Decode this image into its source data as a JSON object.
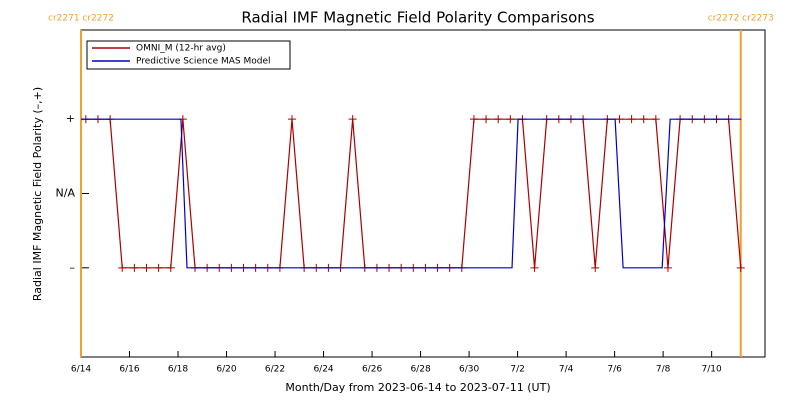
{
  "chart_data": {
    "type": "line",
    "title": "Radial IMF Magnetic Field Polarity Comparisons",
    "x_label": "Month/Day from 2023-06-14 to 2023-07-11 (UT)",
    "y_label": "Radial IMF Magnetic Field Polarity (–,+)",
    "xlim": [
      0,
      28.2
    ],
    "ylim": [
      -2.2,
      2.2
    ],
    "xticks": [
      {
        "value": 0,
        "label": "6/14"
      },
      {
        "value": 2,
        "label": "6/16"
      },
      {
        "value": 4,
        "label": "6/18"
      },
      {
        "value": 6,
        "label": "6/20"
      },
      {
        "value": 8,
        "label": "6/22"
      },
      {
        "value": 10,
        "label": "6/24"
      },
      {
        "value": 12,
        "label": "6/26"
      },
      {
        "value": 14,
        "label": "6/28"
      },
      {
        "value": 16,
        "label": "6/30"
      },
      {
        "value": 18,
        "label": "7/2"
      },
      {
        "value": 20,
        "label": "7/4"
      },
      {
        "value": 22,
        "label": "7/6"
      },
      {
        "value": 24,
        "label": "7/8"
      },
      {
        "value": 26,
        "label": "7/10"
      }
    ],
    "yticks": [
      {
        "value": 1,
        "label": "+"
      },
      {
        "value": 0,
        "label": "N/A"
      },
      {
        "value": -1,
        "label": "–"
      }
    ],
    "carrington_boundaries": [
      {
        "x": 0,
        "label": "cr2271 cr2272"
      },
      {
        "x": 27.2,
        "label": "cr2272 cr2273"
      }
    ],
    "boundary_color": "#f0a030",
    "series": [
      {
        "name": "OMNI_M (12-hr avg)",
        "color": "#aa0000",
        "markers": true,
        "x": [
          0.2,
          0.7,
          1.2,
          1.7,
          2.2,
          2.7,
          3.2,
          3.7,
          4.2,
          4.7,
          5.2,
          5.7,
          6.2,
          6.7,
          7.2,
          7.7,
          8.2,
          8.7,
          9.2,
          9.7,
          10.2,
          10.7,
          11.2,
          11.7,
          12.2,
          12.7,
          13.2,
          13.7,
          14.2,
          14.7,
          15.2,
          15.7,
          16.2,
          16.7,
          17.2,
          17.7,
          18.2,
          18.7,
          19.2,
          19.7,
          20.2,
          20.7,
          21.2,
          21.7,
          22.2,
          22.7,
          23.2,
          23.7,
          24.2,
          24.7,
          25.2,
          25.7,
          26.2,
          26.7,
          27.2
        ],
        "values": [
          1,
          1,
          1,
          -1,
          -1,
          -1,
          -1,
          -1,
          1,
          -1,
          -1,
          -1,
          -1,
          -1,
          -1,
          -1,
          -1,
          1,
          -1,
          -1,
          -1,
          -1,
          1,
          -1,
          -1,
          -1,
          -1,
          -1,
          -1,
          -1,
          -1,
          -1,
          1,
          1,
          1,
          1,
          1,
          -1,
          1,
          1,
          1,
          1,
          -1,
          1,
          1,
          1,
          1,
          1,
          -1,
          1,
          1,
          1,
          1,
          1,
          -1
        ]
      },
      {
        "name": "Predictive Science MAS Model",
        "color": "#0000cc",
        "markers": false,
        "x": [
          0,
          4.12,
          4.37,
          17.77,
          18.02,
          22.02,
          22.35,
          23.96,
          24.29,
          27.22
        ],
        "values": [
          1,
          1,
          -1,
          -1,
          1,
          1,
          -1,
          -1,
          1,
          1
        ]
      }
    ]
  }
}
